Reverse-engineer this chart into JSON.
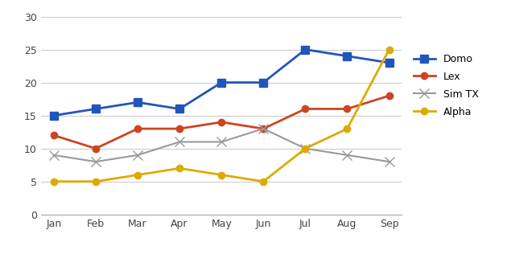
{
  "months": [
    "Jan",
    "Feb",
    "Mar",
    "Apr",
    "May",
    "Jun",
    "Jul",
    "Aug",
    "Sep"
  ],
  "series": {
    "Domo": [
      15,
      16,
      17,
      16,
      20,
      20,
      25,
      24,
      23
    ],
    "Lex": [
      12,
      10,
      13,
      13,
      14,
      13,
      16,
      16,
      18
    ],
    "Sim TX": [
      9,
      8,
      9,
      11,
      11,
      13,
      10,
      9,
      8
    ],
    "Alpha": [
      5,
      5,
      6,
      7,
      6,
      5,
      10,
      13,
      25
    ]
  },
  "colors": {
    "Domo": "#2255BB",
    "Lex": "#CC4422",
    "Sim TX": "#999999",
    "Alpha": "#DDAA00"
  },
  "markers": {
    "Domo": "s",
    "Lex": "o",
    "Sim TX": "x",
    "Alpha": "o"
  },
  "linewidths": {
    "Domo": 2.0,
    "Lex": 2.0,
    "Sim TX": 1.5,
    "Alpha": 2.0
  },
  "ylim": [
    0,
    30
  ],
  "yticks": [
    0,
    5,
    10,
    15,
    20,
    25,
    30
  ],
  "background_color": "#ffffff",
  "grid_color": "#cccccc"
}
